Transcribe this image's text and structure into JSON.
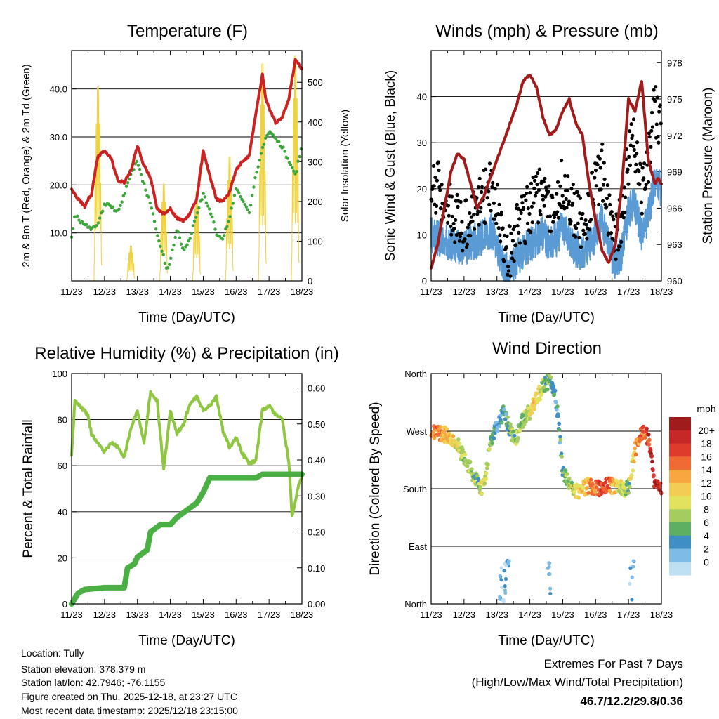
{
  "chart_data": [
    {
      "type": "line",
      "title": "Temperature (F)",
      "xlabel": "Time (Day/UTC)",
      "ylabel": "2m & 9m T (Red, Orange) & 2m Td (Green)",
      "ylabel_right": "Solar Insolation (Yellow)",
      "categories": [
        "11/23",
        "12/23",
        "13/23",
        "14/23",
        "15/23",
        "16/23",
        "17/23",
        "18/23"
      ],
      "xlim": [
        0,
        7
      ],
      "ylim": [
        0,
        48
      ],
      "ylim_right": [
        0,
        580
      ],
      "yticks": [
        "10.0",
        "20.0",
        "30.0",
        "40.0"
      ],
      "yticks_values": [
        10,
        20,
        30,
        40
      ],
      "yticks_right": [
        "0",
        "100",
        "200",
        "300",
        "400",
        "500"
      ],
      "yticks_right_values": [
        0,
        100,
        200,
        300,
        400,
        500
      ],
      "series": [
        {
          "name": "2m & 9m T",
          "color": "#cc2222",
          "x": [
            0,
            0.2,
            0.4,
            0.5,
            0.6,
            0.8,
            1.0,
            1.2,
            1.4,
            1.6,
            1.8,
            2.0,
            2.2,
            2.4,
            2.6,
            2.8,
            3.0,
            3.2,
            3.4,
            3.6,
            3.8,
            4.0,
            4.2,
            4.4,
            4.6,
            4.8,
            5.0,
            5.2,
            5.4,
            5.6,
            5.8,
            5.9,
            6.0,
            6.2,
            6.4,
            6.6,
            6.8,
            6.9,
            7.0
          ],
          "y": [
            19,
            17,
            15.5,
            17,
            18,
            26,
            27,
            25.5,
            21,
            20.5,
            23,
            28,
            24,
            21.5,
            15,
            14,
            15,
            13,
            12.5,
            14,
            17,
            27,
            22,
            17,
            16.5,
            18.5,
            23,
            25,
            26,
            35,
            43,
            38,
            36,
            33,
            34,
            38,
            46,
            45,
            44
          ]
        },
        {
          "name": "2m Td",
          "color": "#3ca53c",
          "x": [
            0,
            0.1,
            0.3,
            0.6,
            0.8,
            1.0,
            1.2,
            1.4,
            1.6,
            1.8,
            2.0,
            2.2,
            2.4,
            2.6,
            2.8,
            2.9,
            3.0,
            3.2,
            3.4,
            3.6,
            3.8,
            4.0,
            4.2,
            4.4,
            4.6,
            4.8,
            5.0,
            5.2,
            5.4,
            5.6,
            5.8,
            6.0,
            6.2,
            6.4,
            6.6,
            6.8,
            6.9,
            7.0
          ],
          "y": [
            9,
            14,
            12,
            11,
            12,
            16,
            15.5,
            14.5,
            18,
            22,
            25,
            20,
            16,
            10,
            5,
            2,
            4,
            11,
            6,
            9,
            14,
            18,
            15,
            10,
            9,
            13,
            19,
            17,
            14,
            22,
            28,
            31,
            29.5,
            28,
            25,
            22,
            25,
            28
          ]
        },
        {
          "name": "Solar Insolation",
          "color": "#f0d23c",
          "axis": "right",
          "peaks_x": [
            0.8,
            1.8,
            2.8,
            3.8,
            4.8,
            5.8,
            6.8
          ],
          "peaks_y": [
            500,
            90,
            250,
            230,
            320,
            560,
            580
          ]
        }
      ]
    },
    {
      "type": "line",
      "title": "Winds (mph) & Pressure (mb)",
      "xlabel": "Time (Day/UTC)",
      "ylabel": "Sonic Wind & Gust (Blue, Black)",
      "ylabel_right": "Station Pressure (Maroon)",
      "categories": [
        "11/23",
        "12/23",
        "13/23",
        "14/23",
        "15/23",
        "16/23",
        "17/23",
        "18/23"
      ],
      "xlim": [
        0,
        7
      ],
      "ylim": [
        0,
        50
      ],
      "ylim_right": [
        960,
        979
      ],
      "yticks": [
        "0",
        "10",
        "20",
        "30",
        "40"
      ],
      "yticks_values": [
        0,
        10,
        20,
        30,
        40
      ],
      "yticks_right": [
        "960",
        "963",
        "966",
        "969",
        "972",
        "975",
        "978"
      ],
      "yticks_right_values": [
        960,
        963,
        966,
        969,
        972,
        975,
        978
      ],
      "series": [
        {
          "name": "Station Pressure",
          "color": "#a01c1c",
          "axis": "right",
          "x": [
            0,
            0.2,
            0.4,
            0.6,
            0.8,
            1.0,
            1.2,
            1.4,
            1.6,
            1.8,
            2.0,
            2.2,
            2.4,
            2.6,
            2.8,
            3.0,
            3.2,
            3.4,
            3.6,
            3.8,
            4.0,
            4.2,
            4.4,
            4.6,
            4.8,
            5.0,
            5.2,
            5.4,
            5.6,
            5.8,
            6.0,
            6.2,
            6.4,
            6.6,
            6.8,
            6.9,
            7.0
          ],
          "y": [
            961,
            963,
            966,
            969,
            970.5,
            970,
            968,
            966,
            967,
            968.5,
            970,
            971.5,
            973,
            974.5,
            976.5,
            977,
            976,
            973.5,
            972,
            972.5,
            974,
            975,
            973,
            972,
            968,
            965,
            962.5,
            961.5,
            963,
            968,
            975,
            974,
            976.5,
            970,
            968,
            968.5,
            968
          ]
        },
        {
          "name": "Gust",
          "color": "#000000",
          "x": [
            0,
            0.3,
            0.6,
            0.9,
            1.2,
            1.5,
            1.8,
            2.0,
            2.2,
            2.4,
            2.6,
            2.8,
            3.0,
            3.2,
            3.4,
            3.6,
            3.8,
            4.0,
            4.2,
            4.4,
            4.6,
            4.8,
            5.0,
            5.2,
            5.4,
            5.6,
            5.8,
            6.0,
            6.2,
            6.4,
            6.6,
            6.8,
            7.0
          ],
          "y": [
            22,
            19,
            15,
            12,
            14,
            17,
            20,
            16,
            9,
            6,
            11,
            13,
            16,
            18,
            20,
            15,
            17,
            22,
            18,
            14,
            12,
            16,
            20,
            24,
            15,
            10,
            13,
            27,
            30,
            19,
            25,
            38,
            33
          ]
        },
        {
          "name": "Sonic Wind",
          "color": "#5a9bd5",
          "x": [
            0,
            0.3,
            0.6,
            0.9,
            1.2,
            1.5,
            1.8,
            2.0,
            2.2,
            2.4,
            2.6,
            2.8,
            3.0,
            3.2,
            3.4,
            3.6,
            3.8,
            4.0,
            4.2,
            4.4,
            4.6,
            4.8,
            5.0,
            5.2,
            5.4,
            5.6,
            5.8,
            6.0,
            6.2,
            6.4,
            6.6,
            6.8,
            7.0
          ],
          "y": [
            10,
            9,
            8,
            7,
            8,
            9,
            11,
            8,
            3,
            2,
            5,
            6,
            8,
            9,
            10,
            8,
            9,
            12,
            9,
            7,
            6,
            8,
            10,
            13,
            7,
            4,
            6,
            15,
            17,
            10,
            14,
            22,
            20
          ]
        }
      ]
    },
    {
      "type": "line",
      "title": "Relative Humidity (%) & Precipitation (in)",
      "xlabel": "Time (Day/UTC)",
      "ylabel": "Percent & Total Rainfall",
      "categories": [
        "11/23",
        "12/23",
        "13/23",
        "14/23",
        "15/23",
        "16/23",
        "17/23",
        "18/23"
      ],
      "xlim": [
        0,
        7
      ],
      "ylim": [
        0,
        100
      ],
      "ylim_right": [
        0,
        0.64
      ],
      "yticks": [
        "0",
        "20",
        "40",
        "60",
        "80",
        "100"
      ],
      "yticks_values": [
        0,
        20,
        40,
        60,
        80,
        100
      ],
      "yticks_right": [
        "0.00",
        "0.10",
        "0.20",
        "0.30",
        "0.40",
        "0.50",
        "0.60"
      ],
      "yticks_right_values": [
        0,
        0.1,
        0.2,
        0.3,
        0.4,
        0.5,
        0.6
      ],
      "series": [
        {
          "name": "Relative Humidity",
          "color": "#8fc642",
          "x": [
            0,
            0.1,
            0.3,
            0.5,
            0.6,
            0.8,
            1.0,
            1.2,
            1.4,
            1.6,
            1.8,
            2.0,
            2.2,
            2.4,
            2.6,
            2.8,
            3.0,
            3.2,
            3.4,
            3.6,
            3.8,
            4.0,
            4.2,
            4.4,
            4.6,
            4.8,
            5.0,
            5.2,
            5.4,
            5.6,
            5.8,
            6.0,
            6.2,
            6.4,
            6.6,
            6.7,
            6.8,
            6.9,
            7.0
          ],
          "y": [
            64,
            88,
            85,
            82,
            74,
            70,
            66,
            70,
            68,
            64,
            76,
            84,
            70,
            92,
            88,
            58,
            84,
            74,
            78,
            87,
            90,
            84,
            86,
            90,
            75,
            68,
            72,
            65,
            61,
            62,
            84,
            86,
            82,
            80,
            62,
            38,
            44,
            52,
            55
          ]
        },
        {
          "name": "Total Precipitation",
          "color": "#4bb044",
          "axis": "right",
          "x": [
            0,
            0.2,
            0.4,
            1.0,
            1.6,
            1.7,
            1.9,
            2.0,
            2.3,
            2.4,
            2.7,
            3.0,
            3.2,
            3.5,
            3.8,
            4.0,
            4.2,
            4.6,
            5.0,
            5.6,
            5.8,
            6.0,
            6.5,
            7.0
          ],
          "y": [
            0,
            0.03,
            0.04,
            0.045,
            0.045,
            0.1,
            0.11,
            0.13,
            0.15,
            0.2,
            0.22,
            0.22,
            0.24,
            0.26,
            0.28,
            0.31,
            0.35,
            0.35,
            0.35,
            0.35,
            0.36,
            0.36,
            0.36,
            0.36
          ]
        }
      ]
    },
    {
      "type": "scatter",
      "title": "Wind Direction",
      "xlabel": "Time (Day/UTC)",
      "ylabel": "Direction (Colored By Speed)",
      "categories": [
        "11/23",
        "12/23",
        "13/23",
        "14/23",
        "15/23",
        "16/23",
        "17/23",
        "18/23"
      ],
      "xlim": [
        0,
        7
      ],
      "ylim": [
        0,
        360
      ],
      "yticks": [
        "North",
        "East",
        "South",
        "West",
        "North"
      ],
      "yticks_values": [
        0,
        90,
        180,
        270,
        360
      ],
      "direction_track": {
        "x": [
          0,
          0.4,
          0.8,
          1.0,
          1.2,
          1.4,
          1.6,
          1.8,
          2.0,
          2.2,
          2.4,
          2.6,
          2.8,
          3.0,
          3.2,
          3.4,
          3.6,
          3.8,
          4.0,
          4.2,
          4.4,
          4.6,
          4.8,
          5.0,
          5.2,
          5.4,
          5.6,
          5.8,
          6.0,
          6.2,
          6.4,
          6.6,
          6.8,
          7.0
        ],
        "direction": [
          270,
          265,
          250,
          225,
          210,
          190,
          180,
          250,
          280,
          300,
          270,
          260,
          290,
          300,
          320,
          340,
          350,
          320,
          210,
          185,
          175,
          180,
          185,
          180,
          180,
          185,
          185,
          180,
          180,
          240,
          270,
          260,
          185,
          180
        ],
        "speed": [
          16,
          14,
          10,
          8,
          8,
          6,
          12,
          6,
          3,
          4,
          6,
          8,
          6,
          10,
          12,
          8,
          6,
          4,
          6,
          8,
          10,
          12,
          14,
          16,
          18,
          16,
          12,
          10,
          6,
          14,
          16,
          18,
          20,
          20
        ]
      },
      "colorbar": {
        "title": "mph",
        "labels": [
          "20+",
          "18",
          "16",
          "14",
          "12",
          "10",
          "8",
          "6",
          "4",
          "2",
          "0"
        ],
        "colors": [
          "#a01c1c",
          "#c62828",
          "#de3b2c",
          "#f06a34",
          "#f7a640",
          "#f3cc52",
          "#e3e25e",
          "#a4cc5e",
          "#5eaf62",
          "#3f8fc4",
          "#7ebbe5",
          "#bfe0f3"
        ]
      }
    }
  ],
  "info": {
    "location": "Location: Tully",
    "elevation": "Station elevation: 378.379 m",
    "latlon": "Station lat/lon: 42.7946; -76.1155",
    "created": "Figure created on Thu, 2025-12-18, at 23:27 UTC",
    "recent": "Most recent data timestamp: 2025/12/18 23:15:00"
  },
  "extremes": {
    "title": "Extremes For Past 7 Days",
    "subtitle": "(High/Low/Max Wind/Total Precipitation)",
    "values": "46.7/12.2/29.8/0.36",
    "color": "#c62828"
  }
}
